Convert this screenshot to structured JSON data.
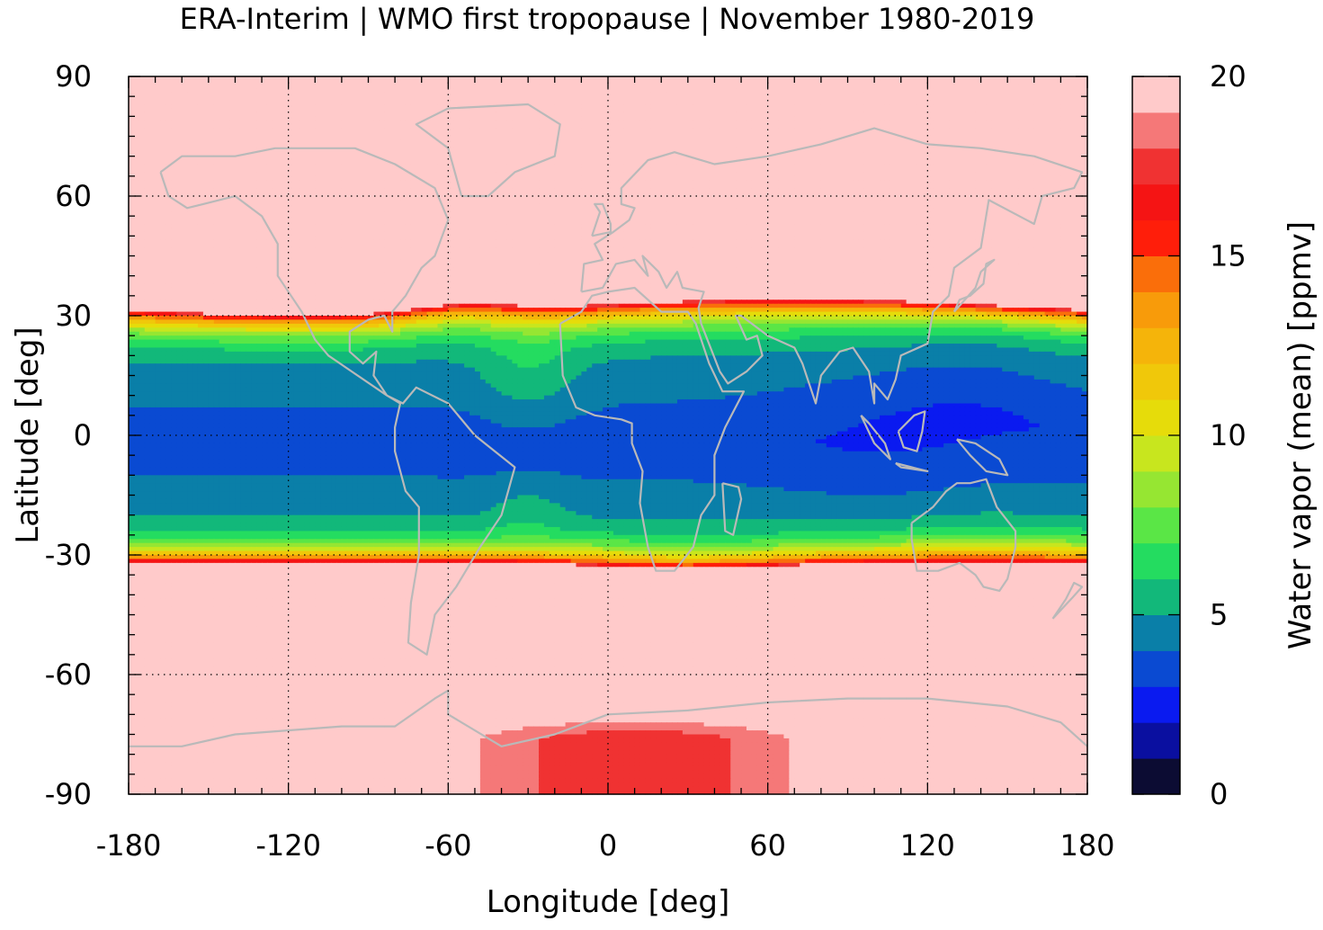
{
  "chart_data": {
    "type": "heatmap",
    "title": "ERA-Interim | WMO first tropopause | November 1980-2019",
    "xlabel": "Longitude [deg]",
    "ylabel": "Latitude [deg]",
    "colorbar_label": "Water vapor (mean) [ppmv]",
    "xlim": [
      -180,
      180
    ],
    "ylim": [
      -90,
      90
    ],
    "x_ticks": [
      -180,
      -120,
      -60,
      0,
      60,
      120,
      180
    ],
    "y_ticks": [
      90,
      60,
      30,
      0,
      -30,
      -60,
      -90
    ],
    "colorbar_range": [
      0,
      20
    ],
    "colorbar_ticks": [
      0,
      5,
      10,
      15,
      20
    ],
    "grid": true,
    "coastlines": true,
    "colorbar_colors": [
      "#0c0c33",
      "#0a0fa0",
      "#0a1af0",
      "#0a4ad2",
      "#0a7fa8",
      "#12b87a",
      "#24dc60",
      "#5ae646",
      "#96e632",
      "#c8e61e",
      "#e6dc0a",
      "#f0c80a",
      "#f5b40a",
      "#f89b0a",
      "#fa6e0a",
      "#ff1e0a",
      "#f51414",
      "#f03232",
      "#f57878",
      "#ffcaca"
    ],
    "fields": {
      "polar_background_value": 20,
      "antarctic_high_value": 17,
      "tropical_minimum_value": 3.5,
      "tropopause_break_latitudes": {
        "north": 32,
        "south": -31
      }
    }
  }
}
